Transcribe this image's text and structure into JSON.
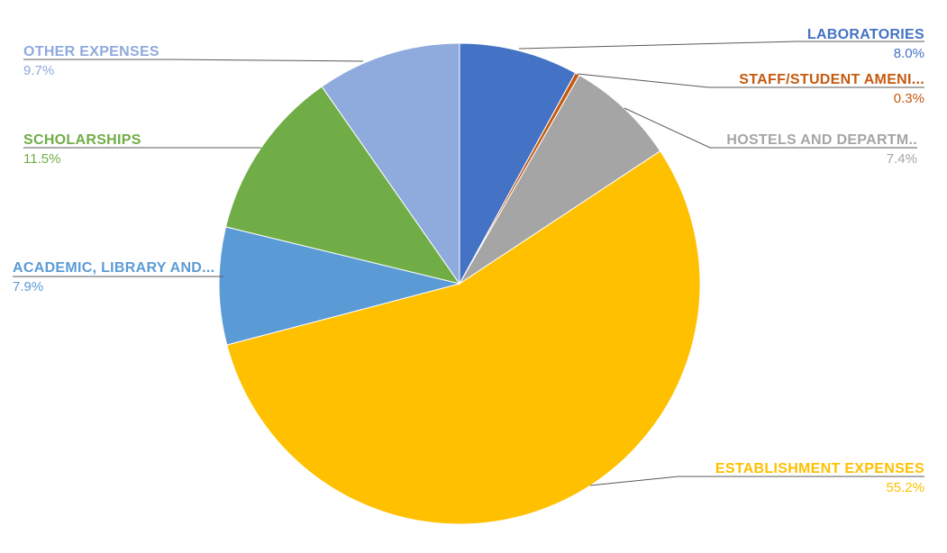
{
  "chart_data": {
    "type": "pie",
    "start_angle_deg": 0,
    "direction": "clockwise",
    "background": "#FFFFFF",
    "legend_position": "callout-labels",
    "leader_line_color": "#595959",
    "slices": [
      {
        "label": "LABORATORIES",
        "value": 8.0,
        "pct_label": "8.0%",
        "color": "#4472C4"
      },
      {
        "label": "STAFF/STUDENT AMENI...",
        "value": 0.3,
        "pct_label": "0.3%",
        "color": "#C55A11"
      },
      {
        "label": "HOSTELS AND DEPARTM..",
        "value": 7.4,
        "pct_label": "7.4%",
        "color": "#A5A5A5"
      },
      {
        "label": "ESTABLISHMENT EXPENSES",
        "value": 55.2,
        "pct_label": "55.2%",
        "color": "#FFC000"
      },
      {
        "label": "ACADEMIC, LIBRARY AND...",
        "value": 7.9,
        "pct_label": "7.9%",
        "color": "#5B9BD5"
      },
      {
        "label": "SCHOLARSHIPS",
        "value": 11.5,
        "pct_label": "11.5%",
        "color": "#70AD47"
      },
      {
        "label": "OTHER EXPENSES",
        "value": 9.7,
        "pct_label": "9.7%",
        "color": "#8FAADC"
      }
    ]
  }
}
